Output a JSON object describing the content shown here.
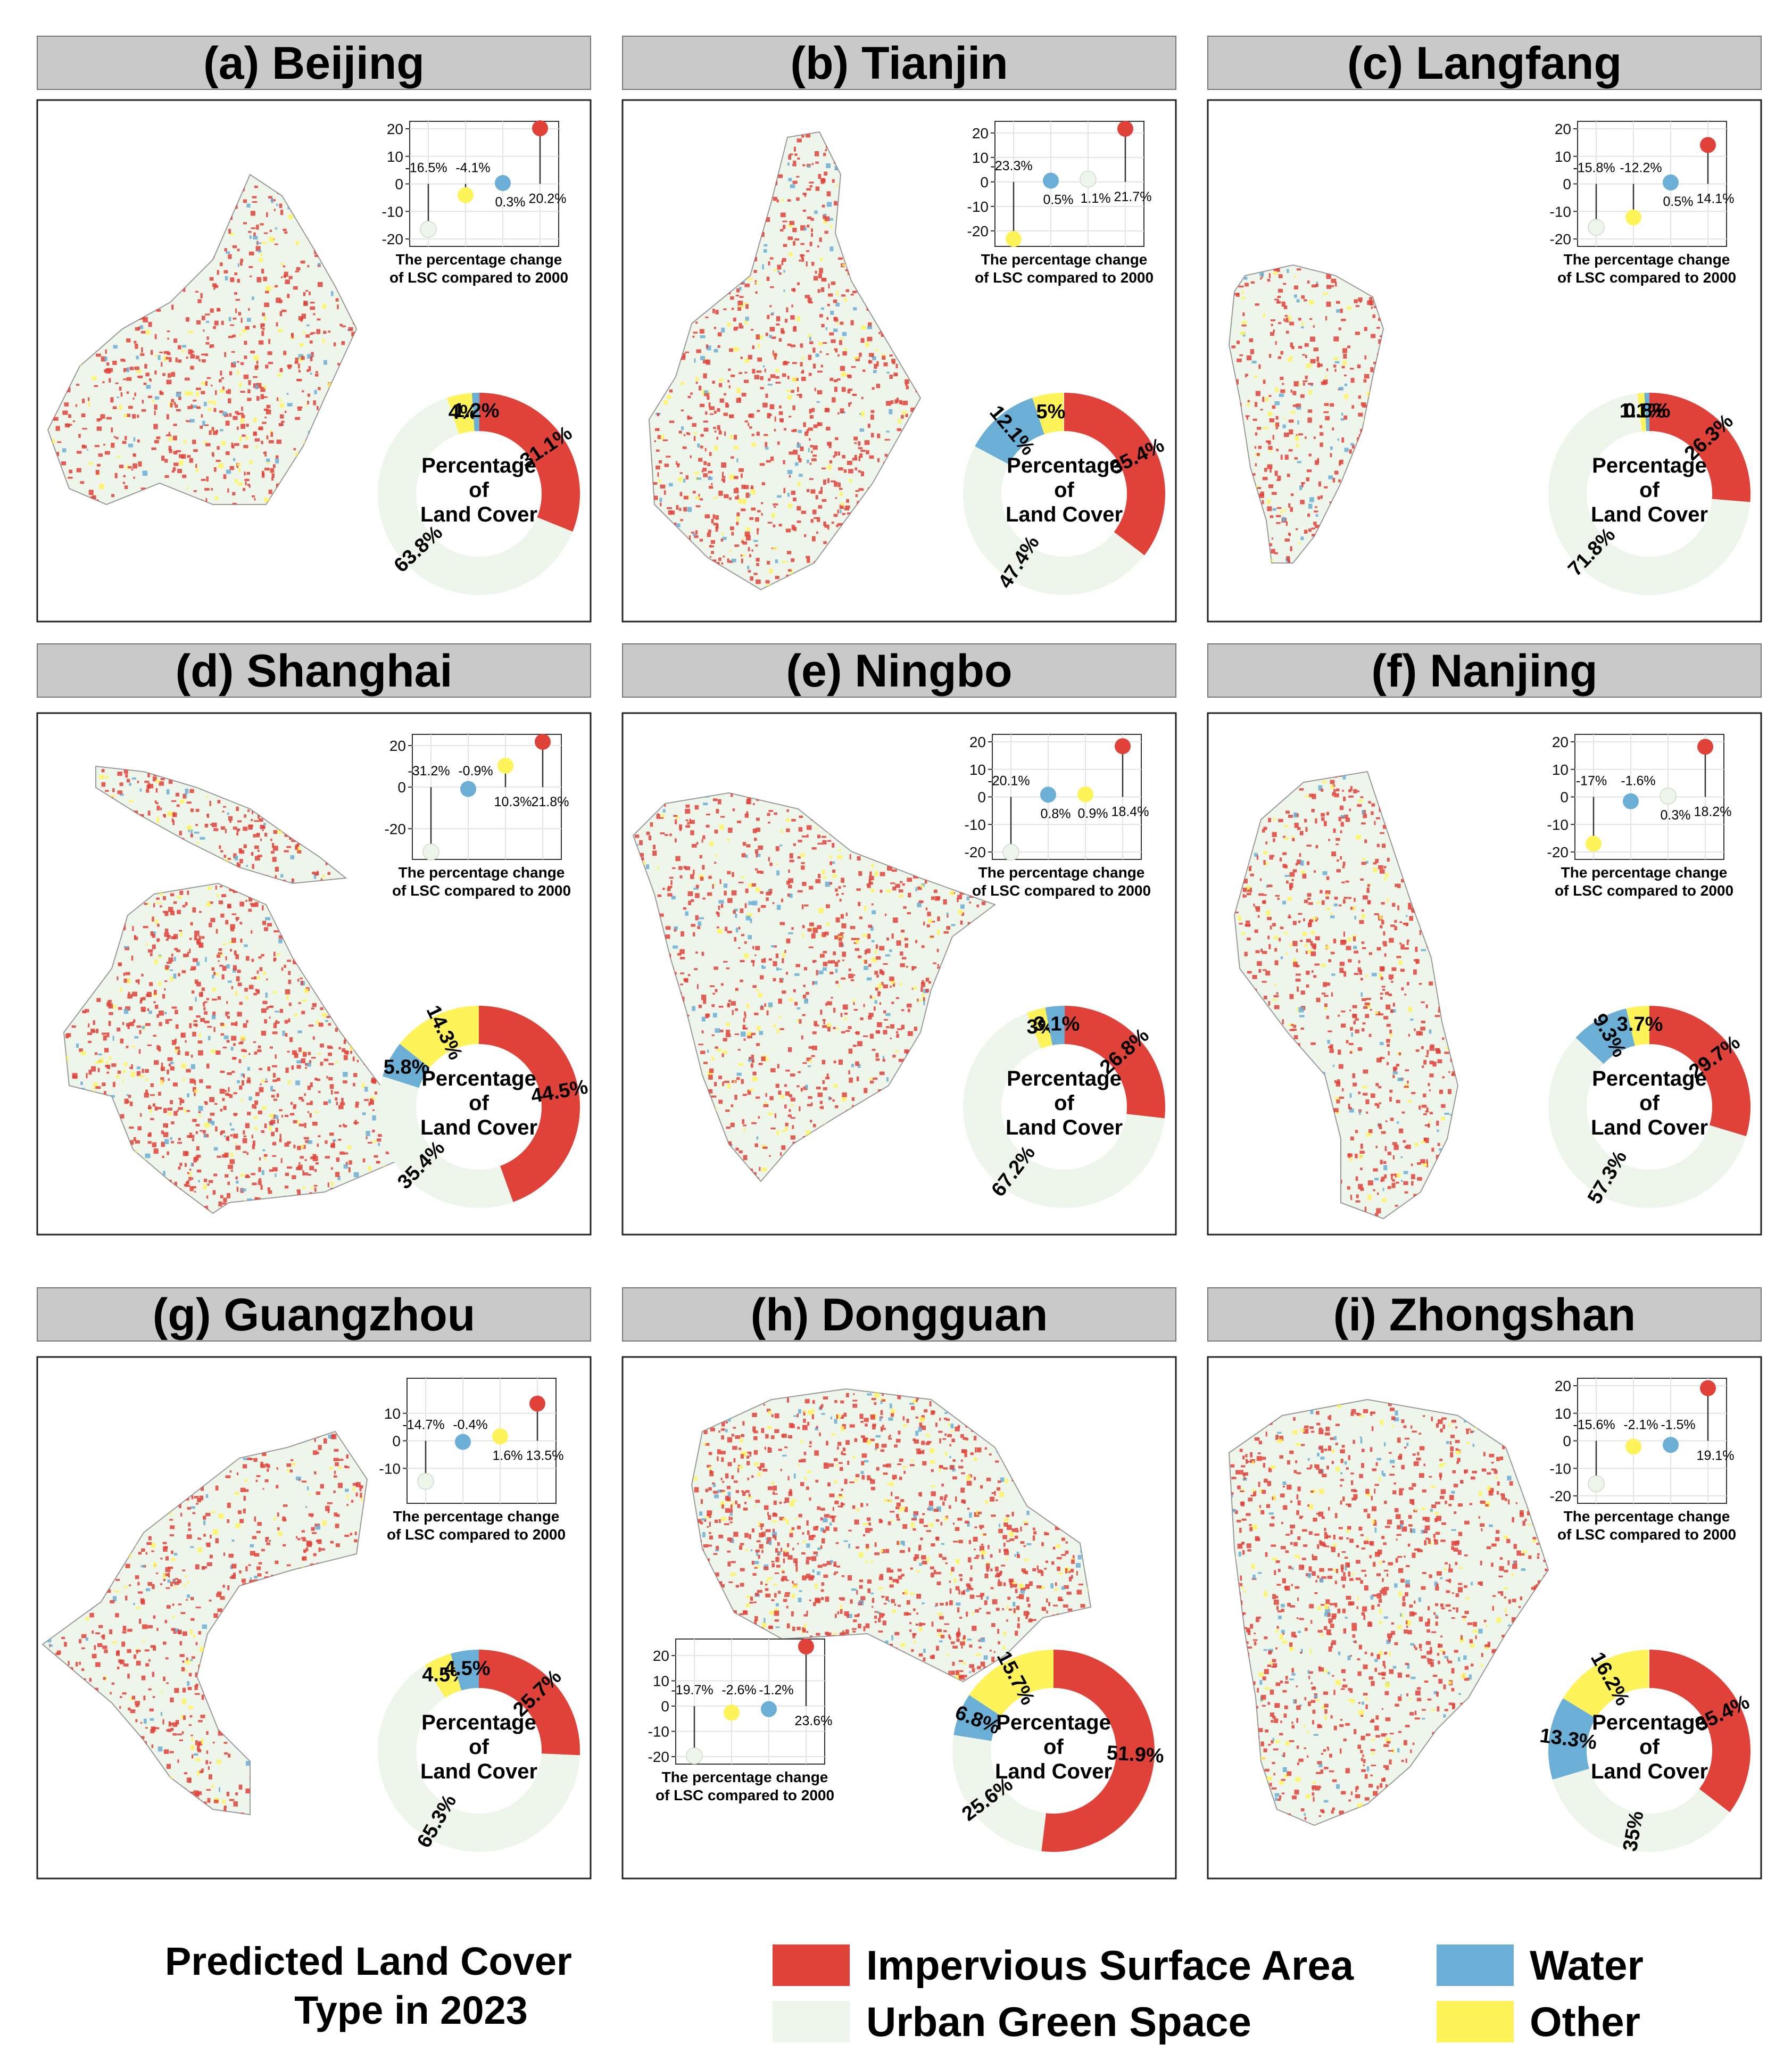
{
  "colors": {
    "isa": "#E0423A",
    "ugs": "#EEF6EC",
    "water": "#6BAED6",
    "other": "#FFF35A"
  },
  "donut_center": [
    "Percentage",
    "of",
    "Land Cover"
  ],
  "lollipop_caption": [
    "The percentage change",
    "of LSC compared to 2000"
  ],
  "legend": {
    "title_line1": "Predicted Land Cover",
    "title_line2": "Type in 2023",
    "items": [
      {
        "key": "isa",
        "label": "Impervious Surface Area"
      },
      {
        "key": "water",
        "label": "Water"
      },
      {
        "key": "ugs",
        "label": "Urban Green Space"
      },
      {
        "key": "other",
        "label": "Other"
      }
    ]
  },
  "chart_data": [
    {
      "type": "panel",
      "title": "(a) Beijing",
      "lollipop": {
        "type": "scatter",
        "ylim": [
          -20,
          20
        ],
        "ticks": [
          20,
          10,
          0,
          -10,
          -20
        ],
        "order": [
          "ugs",
          "other",
          "water",
          "isa"
        ],
        "values": [
          -16.5,
          -4.1,
          0.3,
          20.2
        ],
        "labels": [
          "-16.5%",
          "-4.1%",
          "0.3%",
          "20.2%"
        ]
      },
      "donut": {
        "type": "pie",
        "slices": [
          {
            "key": "isa",
            "value": 31.1,
            "label": "31.1%"
          },
          {
            "key": "ugs",
            "value": 63.8,
            "label": "63.8%"
          },
          {
            "key": "other",
            "value": 4,
            "label": "4%"
          },
          {
            "key": "water",
            "value": 1.2,
            "label": "1.2%"
          }
        ]
      }
    },
    {
      "type": "panel",
      "title": "(b) Tianjin",
      "lollipop": {
        "type": "scatter",
        "ylim": [
          -23.3,
          21.7
        ],
        "ticks": [
          20,
          10,
          0,
          -10,
          -20
        ],
        "order": [
          "other",
          "water",
          "ugs",
          "isa"
        ],
        "values": [
          -23.3,
          0.5,
          1.1,
          21.7
        ],
        "labels": [
          "-23.3%",
          "0.5%",
          "1.1%",
          "21.7%"
        ]
      },
      "donut": {
        "type": "pie",
        "slices": [
          {
            "key": "isa",
            "value": 35.4,
            "label": "35.4%"
          },
          {
            "key": "ugs",
            "value": 47.4,
            "label": "47.4%"
          },
          {
            "key": "water",
            "value": 12.1,
            "label": "12.1%"
          },
          {
            "key": "other",
            "value": 5,
            "label": "5%"
          }
        ]
      }
    },
    {
      "type": "panel",
      "title": "(c) Langfang",
      "lollipop": {
        "type": "scatter",
        "ylim": [
          -20,
          20
        ],
        "ticks": [
          20,
          10,
          0,
          -10,
          -20
        ],
        "order": [
          "ugs",
          "other",
          "water",
          "isa"
        ],
        "values": [
          -15.8,
          -12.2,
          0.5,
          14.1
        ],
        "labels": [
          "-15.8%",
          "-12.2%",
          "0.5%",
          "14.1%"
        ]
      },
      "donut": {
        "type": "pie",
        "slices": [
          {
            "key": "isa",
            "value": 26.3,
            "label": "26.3%"
          },
          {
            "key": "ugs",
            "value": 71.8,
            "label": "71.8%"
          },
          {
            "key": "other",
            "value": 1.1,
            "label": "1.1%"
          },
          {
            "key": "water",
            "value": 0.8,
            "label": "0.8%"
          }
        ]
      }
    },
    {
      "type": "panel",
      "title": "(d) Shanghai",
      "lollipop": {
        "type": "scatter",
        "ylim": [
          -31.2,
          21.8
        ],
        "ticks": [
          20,
          0,
          -20
        ],
        "order": [
          "ugs",
          "water",
          "other",
          "isa"
        ],
        "values": [
          -31.2,
          -0.9,
          10.3,
          21.8
        ],
        "labels": [
          "-31.2%",
          "-0.9%",
          "10.3%",
          "21.8%"
        ]
      },
      "donut": {
        "type": "pie",
        "slices": [
          {
            "key": "isa",
            "value": 44.5,
            "label": "44.5%"
          },
          {
            "key": "ugs",
            "value": 35.4,
            "label": "35.4%"
          },
          {
            "key": "water",
            "value": 5.8,
            "label": "5.8%"
          },
          {
            "key": "other",
            "value": 14.3,
            "label": "14.3%"
          }
        ]
      }
    },
    {
      "type": "panel",
      "title": "(e) Ningbo",
      "lollipop": {
        "type": "scatter",
        "ylim": [
          -20,
          20
        ],
        "ticks": [
          20,
          10,
          0,
          -10,
          -20
        ],
        "order": [
          "ugs",
          "water",
          "other",
          "isa"
        ],
        "values": [
          -20.1,
          0.8,
          0.9,
          18.4
        ],
        "labels": [
          "-20.1%",
          "0.8%",
          "0.9%",
          "18.4%"
        ]
      },
      "donut": {
        "type": "pie",
        "slices": [
          {
            "key": "isa",
            "value": 26.8,
            "label": "26.8%"
          },
          {
            "key": "ugs",
            "value": 67.2,
            "label": "67.2%"
          },
          {
            "key": "other",
            "value": 3,
            "label": "3%"
          },
          {
            "key": "water",
            "value": 3.1,
            "label": "3.1%"
          }
        ]
      }
    },
    {
      "type": "panel",
      "title": "(f) Nanjing",
      "lollipop": {
        "type": "scatter",
        "ylim": [
          -20,
          20
        ],
        "ticks": [
          20,
          10,
          0,
          -10,
          -20
        ],
        "order": [
          "other",
          "water",
          "ugs",
          "isa"
        ],
        "values": [
          -17,
          -1.6,
          0.3,
          18.2
        ],
        "labels": [
          "-17%",
          "-1.6%",
          "0.3%",
          "18.2%"
        ]
      },
      "donut": {
        "type": "pie",
        "slices": [
          {
            "key": "isa",
            "value": 29.7,
            "label": "29.7%"
          },
          {
            "key": "ugs",
            "value": 57.3,
            "label": "57.3%"
          },
          {
            "key": "water",
            "value": 9.3,
            "label": "9.3%"
          },
          {
            "key": "other",
            "value": 3.7,
            "label": "3.7%"
          }
        ]
      }
    },
    {
      "type": "panel",
      "title": "(g) Guangzhou",
      "lollipop": {
        "type": "scatter",
        "ylim": [
          -15,
          15
        ],
        "ticks": [
          10,
          0,
          -10
        ],
        "order": [
          "ugs",
          "water",
          "other",
          "isa"
        ],
        "values": [
          -14.7,
          -0.4,
          1.6,
          13.5
        ],
        "labels": [
          "-14.7%",
          "-0.4%",
          "1.6%",
          "13.5%"
        ]
      },
      "donut": {
        "type": "pie",
        "slices": [
          {
            "key": "isa",
            "value": 25.7,
            "label": "25.7%"
          },
          {
            "key": "ugs",
            "value": 65.3,
            "label": "65.3%"
          },
          {
            "key": "other",
            "value": 4.5,
            "label": "4.5%"
          },
          {
            "key": "water",
            "value": 4.5,
            "label": "4.5%"
          }
        ]
      }
    },
    {
      "type": "panel",
      "title": "(h) Dongguan",
      "lollipop": {
        "type": "scatter",
        "ylim": [
          -20,
          23.6
        ],
        "ticks": [
          20,
          10,
          0,
          -10,
          -20
        ],
        "order": [
          "ugs",
          "other",
          "water",
          "isa"
        ],
        "values": [
          -19.7,
          -2.6,
          -1.2,
          23.6
        ],
        "labels": [
          "-19.7%",
          "-2.6%",
          "-1.2%",
          "23.6%"
        ]
      },
      "donut": {
        "type": "pie",
        "slices": [
          {
            "key": "isa",
            "value": 51.9,
            "label": "51.9%"
          },
          {
            "key": "ugs",
            "value": 25.6,
            "label": "25.6%"
          },
          {
            "key": "water",
            "value": 6.8,
            "label": "6.8%"
          },
          {
            "key": "other",
            "value": 15.7,
            "label": "15.7%"
          }
        ]
      }
    },
    {
      "type": "panel",
      "title": "(i) Zhongshan",
      "lollipop": {
        "type": "scatter",
        "ylim": [
          -20,
          20
        ],
        "ticks": [
          20,
          10,
          0,
          -10,
          -20
        ],
        "order": [
          "ugs",
          "other",
          "water",
          "isa"
        ],
        "values": [
          -15.6,
          -2.1,
          -1.5,
          19.1
        ],
        "labels": [
          "-15.6%",
          "-2.1%",
          "-1.5%",
          "19.1%"
        ]
      },
      "donut": {
        "type": "pie",
        "slices": [
          {
            "key": "isa",
            "value": 35.4,
            "label": "35.4%"
          },
          {
            "key": "ugs",
            "value": 35,
            "label": "35%"
          },
          {
            "key": "water",
            "value": 13.3,
            "label": "13.3%"
          },
          {
            "key": "other",
            "value": 16.2,
            "label": "16.2%"
          }
        ]
      }
    }
  ]
}
